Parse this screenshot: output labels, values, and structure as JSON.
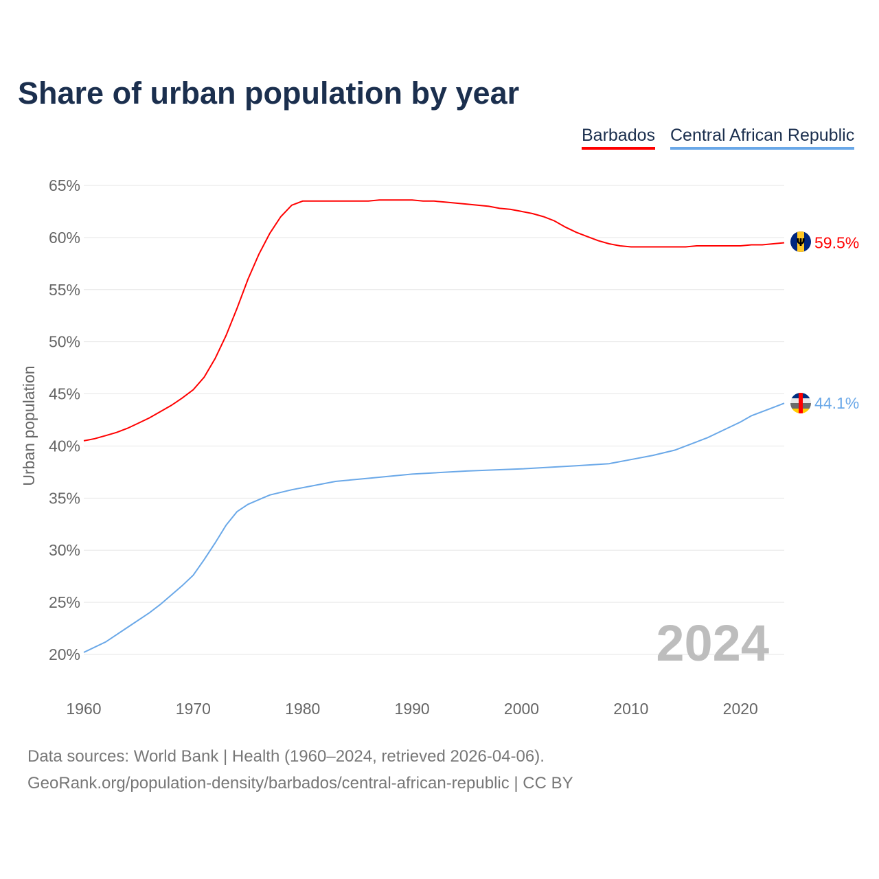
{
  "chart_data": {
    "type": "line",
    "title": "Share of urban population by year",
    "xlabel": "",
    "ylabel": "Urban population",
    "xlim": [
      1960,
      2024
    ],
    "ylim": [
      20,
      65
    ],
    "yticks": [
      "20%",
      "25%",
      "30%",
      "35%",
      "40%",
      "45%",
      "50%",
      "55%",
      "60%",
      "65%"
    ],
    "ytick_values": [
      20,
      25,
      30,
      35,
      40,
      45,
      50,
      55,
      60,
      65
    ],
    "xticks": [
      "1960",
      "1970",
      "1980",
      "1990",
      "2000",
      "2010",
      "2020"
    ],
    "xtick_values": [
      1960,
      1970,
      1980,
      1990,
      2000,
      2010,
      2020
    ],
    "grid": true,
    "legend_placement": "top-right",
    "year_label": "2024",
    "series": [
      {
        "name": "Barbados",
        "color": "#ff0000",
        "end_label": "59.5%",
        "x": [
          1960,
          1961,
          1962,
          1963,
          1964,
          1965,
          1966,
          1967,
          1968,
          1969,
          1970,
          1971,
          1972,
          1973,
          1974,
          1975,
          1976,
          1977,
          1978,
          1979,
          1980,
          1983,
          1986,
          1987,
          1990,
          1991,
          1992,
          1993,
          1995,
          1997,
          1998,
          1999,
          2000,
          2001,
          2002,
          2003,
          2004,
          2005,
          2006,
          2007,
          2008,
          2009,
          2010,
          2015,
          2016,
          2020,
          2021,
          2022,
          2023,
          2024
        ],
        "y": [
          40.5,
          40.7,
          41.0,
          41.3,
          41.7,
          42.2,
          42.7,
          43.3,
          43.9,
          44.6,
          45.4,
          46.6,
          48.4,
          50.6,
          53.2,
          56.0,
          58.4,
          60.4,
          62.0,
          63.1,
          63.5,
          63.5,
          63.5,
          63.6,
          63.6,
          63.5,
          63.5,
          63.4,
          63.2,
          63.0,
          62.8,
          62.7,
          62.5,
          62.3,
          62.0,
          61.6,
          61.0,
          60.5,
          60.1,
          59.7,
          59.4,
          59.2,
          59.1,
          59.1,
          59.2,
          59.2,
          59.3,
          59.3,
          59.4,
          59.5
        ]
      },
      {
        "name": "Central African Republic",
        "color": "#6aa8e8",
        "end_label": "44.1%",
        "x": [
          1960,
          1962,
          1964,
          1966,
          1967,
          1969,
          1970,
          1971,
          1972,
          1973,
          1974,
          1975,
          1977,
          1979,
          1981,
          1983,
          1986,
          1990,
          1995,
          2000,
          2005,
          2008,
          2010,
          2012,
          2014,
          2016,
          2017,
          2019,
          2020,
          2021,
          2023,
          2024
        ],
        "y": [
          20.2,
          21.2,
          22.6,
          24.0,
          24.8,
          26.6,
          27.6,
          29.1,
          30.7,
          32.4,
          33.7,
          34.4,
          35.3,
          35.8,
          36.2,
          36.6,
          36.9,
          37.3,
          37.6,
          37.8,
          38.1,
          38.3,
          38.7,
          39.1,
          39.6,
          40.4,
          40.8,
          41.8,
          42.3,
          42.9,
          43.7,
          44.1
        ]
      }
    ]
  },
  "footer": {
    "line1": "Data sources: World Bank | Health (1960–2024, retrieved 2026-04-06).",
    "line2": "GeoRank.org/population-density/barbados/central-african-republic | CC BY"
  }
}
